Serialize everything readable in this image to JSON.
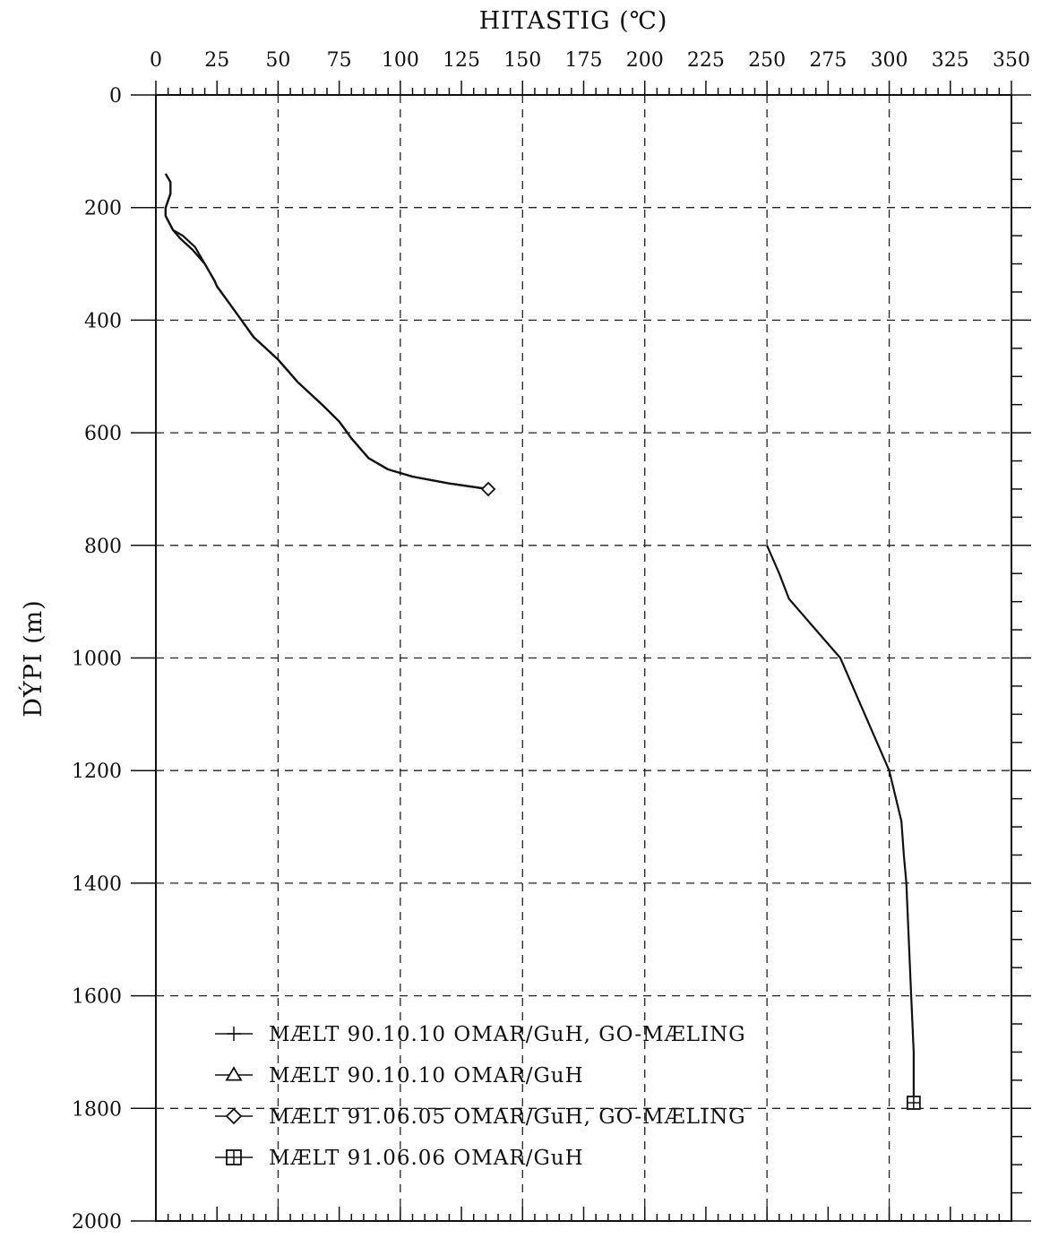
{
  "chart_data": {
    "type": "line",
    "xlabel": "HITASTIG (℃)",
    "ylabel": "DÝPI (m)",
    "xlim": [
      0,
      350
    ],
    "ylim": [
      0,
      2000
    ],
    "y_inverted": true,
    "x_axis_position": "top",
    "x_ticks": [
      0,
      25,
      50,
      75,
      100,
      125,
      150,
      175,
      200,
      225,
      250,
      275,
      300,
      325,
      350
    ],
    "y_ticks": [
      0,
      200,
      400,
      600,
      800,
      1000,
      1200,
      1400,
      1600,
      1800,
      2000
    ],
    "x_grid": [
      50,
      100,
      150,
      200,
      250,
      300
    ],
    "y_grid": [
      200,
      400,
      600,
      800,
      1000,
      1200,
      1400,
      1600,
      1800
    ],
    "grid": true,
    "legend_position": "bottom-left",
    "series": [
      {
        "name": "MÆLT 90.10.10 OMAR/GuH, GO-MÆLING",
        "marker": "plus",
        "x": [
          4,
          6,
          6,
          4,
          4,
          7,
          10,
          15,
          20,
          24,
          25,
          30,
          35,
          40,
          45,
          50,
          58,
          68,
          75,
          80,
          87,
          95,
          105,
          120,
          136
        ],
        "y": [
          140,
          155,
          175,
          200,
          215,
          240,
          255,
          275,
          300,
          330,
          340,
          370,
          400,
          430,
          450,
          470,
          510,
          550,
          580,
          610,
          645,
          665,
          678,
          690,
          700
        ]
      },
      {
        "name": "MÆLT 90.10.10 OMAR/GuH",
        "marker": "triangle",
        "x": [
          4,
          6,
          6,
          4,
          4,
          7,
          11,
          16,
          20,
          24,
          25,
          30,
          35,
          40,
          45,
          50,
          58,
          68,
          75,
          80,
          87,
          95,
          105,
          120,
          136
        ],
        "y": [
          140,
          155,
          175,
          200,
          215,
          240,
          250,
          270,
          300,
          330,
          340,
          370,
          400,
          430,
          450,
          470,
          510,
          550,
          580,
          610,
          645,
          665,
          678,
          690,
          700
        ]
      },
      {
        "name": "MÆLT 91.06.05 OMAR/GuH, GO-MÆLING",
        "marker": "diamond",
        "x": [
          4,
          6,
          6,
          4,
          4,
          7,
          10,
          15,
          20,
          24,
          25,
          30,
          35,
          40,
          45,
          50,
          58,
          68,
          75,
          80,
          87,
          95,
          105,
          120,
          136
        ],
        "y": [
          140,
          155,
          175,
          200,
          215,
          240,
          255,
          275,
          300,
          330,
          340,
          370,
          400,
          430,
          450,
          470,
          510,
          550,
          580,
          610,
          645,
          665,
          678,
          690,
          700
        ]
      },
      {
        "name": "MÆLT 91.06.06 OMAR/GuH",
        "marker": "square",
        "x": [
          250,
          255,
          259,
          270,
          280,
          290,
          300,
          305,
          306,
          307,
          308,
          309,
          310,
          310,
          310
        ],
        "y": [
          800,
          850,
          895,
          950,
          1000,
          1100,
          1200,
          1290,
          1350,
          1400,
          1500,
          1600,
          1700,
          1750,
          1790
        ]
      }
    ]
  }
}
